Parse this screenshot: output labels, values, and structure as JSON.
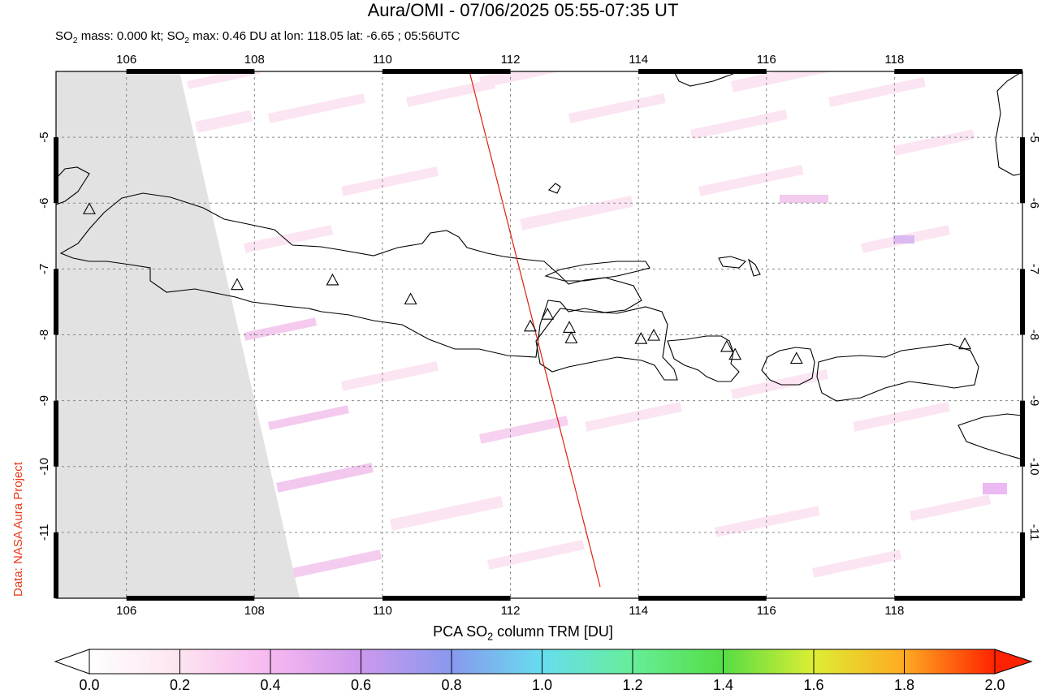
{
  "title": "Aura/OMI - 07/06/2025 05:55-07:35 UT",
  "subtitle": {
    "prefix": "SO",
    "sub1": "2",
    "mid": " mass: 0.000 kt; SO",
    "sub2": "2",
    "suffix": " max: 0.46 DU at lon: 118.05 lat: -6.65 ; 05:56UTC"
  },
  "credit": "Data: NASA Aura Project",
  "colorbar": {
    "label_prefix": "PCA SO",
    "label_sub": "2",
    "label_suffix": " column TRM [DU]",
    "ticks": [
      "0.0",
      "0.2",
      "0.4",
      "0.6",
      "0.8",
      "1.0",
      "1.2",
      "1.4",
      "1.6",
      "1.8",
      "2.0"
    ],
    "colors": [
      "#ffffff",
      "#fde4f0",
      "#f6b8f0",
      "#cc99ee",
      "#8899ee",
      "#66ddee",
      "#66ee99",
      "#55dd44",
      "#ddee33",
      "#ffaa22",
      "#ff2200"
    ]
  },
  "map": {
    "lon_ticks": [
      "106",
      "108",
      "110",
      "112",
      "114",
      "116",
      "118"
    ],
    "lat_ticks": [
      "-5",
      "-6",
      "-7",
      "-8",
      "-9",
      "-10",
      "-11"
    ],
    "lon_range": [
      104.9,
      120.0
    ],
    "lat_range": [
      -12.0,
      -4.0
    ],
    "volcano_icon": "triangle-icon",
    "volcanoes": [
      {
        "lon": 105.42,
        "lat": -6.1
      },
      {
        "lon": 107.73,
        "lat": -7.25
      },
      {
        "lon": 109.22,
        "lat": -7.18
      },
      {
        "lon": 110.44,
        "lat": -7.47
      },
      {
        "lon": 112.31,
        "lat": -7.88
      },
      {
        "lon": 112.58,
        "lat": -7.7
      },
      {
        "lon": 112.92,
        "lat": -7.9
      },
      {
        "lon": 112.95,
        "lat": -8.06
      },
      {
        "lon": 114.04,
        "lat": -8.07
      },
      {
        "lon": 114.24,
        "lat": -8.02
      },
      {
        "lon": 115.38,
        "lat": -8.19
      },
      {
        "lon": 115.51,
        "lat": -8.31
      },
      {
        "lon": 116.47,
        "lat": -8.37
      },
      {
        "lon": 119.1,
        "lat": -8.15
      }
    ],
    "no_data_color": "#e2e2e2",
    "orbit_line_color": "#dd2211"
  }
}
